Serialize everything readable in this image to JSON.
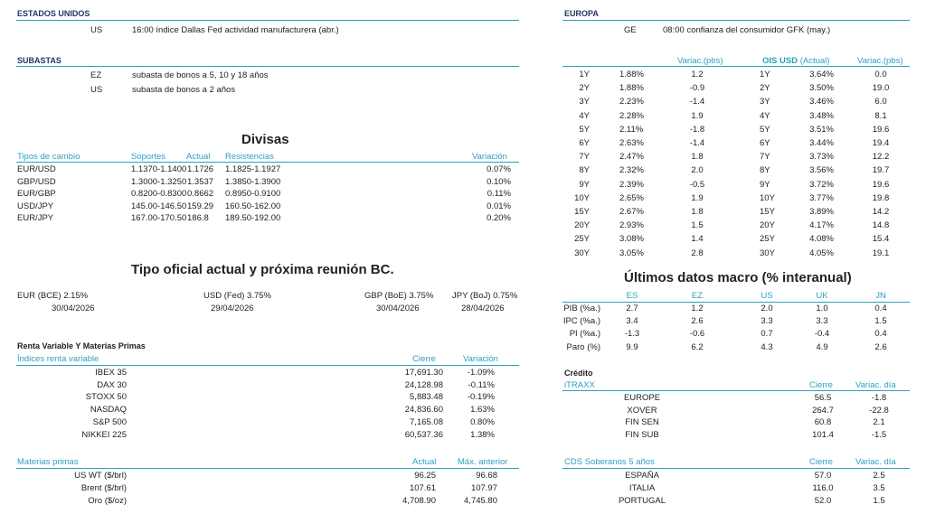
{
  "estados_unidos": {
    "title": "ESTADOS UNIDOS",
    "country": "US",
    "event": "16:00 índice Dallas Fed actividad manufacturera (abr.)"
  },
  "europa": {
    "title": "EUROPA",
    "country": "GE",
    "event": "08:00 confianza del consumidor GFK (may.)"
  },
  "subastas": {
    "title": "SUBASTAS",
    "items": [
      {
        "country": "EZ",
        "text": "subasta de bonos a 5, 10 y 18 años"
      },
      {
        "country": "US",
        "text": "subasta de bonos a 2 años"
      }
    ]
  },
  "divisas": {
    "title": "Divisas",
    "headers": {
      "pair": "Tipos de cambio",
      "supports": "Soportes",
      "current": "Actual",
      "resistances": "Resistencias",
      "change": "Variación"
    },
    "rows": [
      {
        "pair": "EUR/USD",
        "supports": "1.1370-1.1400",
        "current": "1.1726",
        "resistances": "1.1825-1.1927",
        "change": "0.07%"
      },
      {
        "pair": "GBP/USD",
        "supports": "1.3000-1.3250",
        "current": "1.3537",
        "resistances": "1.3850-1.3900",
        "change": "0.10%"
      },
      {
        "pair": "EUR/GBP",
        "supports": "0.8200-0.8300",
        "current": "0.8662",
        "resistances": "0.8950-0.9100",
        "change": "0.11%"
      },
      {
        "pair": "USD/JPY",
        "supports": "145.00-146.50",
        "current": "159.29",
        "resistances": "160.50-162.00",
        "change": "0.01%"
      },
      {
        "pair": "EUR/JPY",
        "supports": "167.00-170.50",
        "current": "186.8",
        "resistances": "189.50-192.00",
        "change": "0.20%"
      }
    ]
  },
  "tipos_oficiales": {
    "title": "Tipo oficial actual y próxima reunión BC.",
    "banks": [
      {
        "label": "EUR (BCE) 2.15%",
        "date": "30/04/2026"
      },
      {
        "label": "USD (Fed) 3.75%",
        "date": "29/04/2026"
      },
      {
        "label": "GBP (BoE) 3.75%",
        "date": "30/04/2026"
      },
      {
        "label": "JPY (BoJ) 0.75%",
        "date": "28/04/2026"
      }
    ]
  },
  "renta_variable": {
    "title": "Renta Variable Y Materias Primas",
    "headers": {
      "name": "Índices renta variable",
      "close": "Cierre",
      "change": "Variación"
    },
    "rows": [
      {
        "name": "IBEX 35",
        "close": "17,691.30",
        "change": "-1.09%"
      },
      {
        "name": "DAX 30",
        "close": "24,128.98",
        "change": "-0.11%"
      },
      {
        "name": "STOXX 50",
        "close": "5,883.48",
        "change": "-0.19%"
      },
      {
        "name": "NASDAQ",
        "close": "24,836.60",
        "change": "1.63%"
      },
      {
        "name": "S&P 500",
        "close": "7,165.08",
        "change": "0.80%"
      },
      {
        "name": "NIKKEI 225",
        "close": "60,537.36",
        "change": "1.38%"
      }
    ]
  },
  "materias_primas": {
    "headers": {
      "name": "Materias primas",
      "current": "Actual",
      "prev_max": "Máx. anterior"
    },
    "rows": [
      {
        "name": "US WT ($/brl)",
        "current": "96.25",
        "prev_max": "96.68"
      },
      {
        "name": "Brent ($/brl)",
        "current": "107.61",
        "prev_max": "107.97"
      },
      {
        "name": "Oro ($/oz)",
        "current": "4,708.90",
        "prev_max": "4,745.80"
      }
    ]
  },
  "curvas": {
    "headers": {
      "var1": "Variac.(pbs)",
      "ois": "OIS USD",
      "ois_sub": "(Actual)",
      "var2": "Variac.(pbs)"
    },
    "rows": [
      {
        "t": "1Y",
        "r": "1.88%",
        "v": "1.2",
        "t2": "1Y",
        "o": "3.64%",
        "v2": "0.0"
      },
      {
        "t": "2Y",
        "r": "1.88%",
        "v": "-0.9",
        "t2": "2Y",
        "o": "3.50%",
        "v2": "19.0"
      },
      {
        "t": "3Y",
        "r": "2.23%",
        "v": "-1.4",
        "t2": "3Y",
        "o": "3.46%",
        "v2": "6.0"
      },
      {
        "t": "4Y",
        "r": "2.28%",
        "v": "1.9",
        "t2": "4Y",
        "o": "3.48%",
        "v2": "8.1"
      },
      {
        "t": "5Y",
        "r": "2.11%",
        "v": "-1.8",
        "t2": "5Y",
        "o": "3.51%",
        "v2": "19.6"
      },
      {
        "t": "6Y",
        "r": "2.63%",
        "v": "-1.4",
        "t2": "6Y",
        "o": "3.44%",
        "v2": "19.4"
      },
      {
        "t": "7Y",
        "r": "2.47%",
        "v": "1.8",
        "t2": "7Y",
        "o": "3.73%",
        "v2": "12.2"
      },
      {
        "t": "8Y",
        "r": "2.32%",
        "v": "2.0",
        "t2": "8Y",
        "o": "3.56%",
        "v2": "19.7"
      },
      {
        "t": "9Y",
        "r": "2.39%",
        "v": "-0.5",
        "t2": "9Y",
        "o": "3.72%",
        "v2": "19.6"
      },
      {
        "t": "10Y",
        "r": "2.65%",
        "v": "1.9",
        "t2": "10Y",
        "o": "3.77%",
        "v2": "19.8"
      },
      {
        "t": "15Y",
        "r": "2.67%",
        "v": "1.8",
        "t2": "15Y",
        "o": "3.89%",
        "v2": "14.2"
      },
      {
        "t": "20Y",
        "r": "2.93%",
        "v": "1.5",
        "t2": "20Y",
        "o": "4.17%",
        "v2": "14.8"
      },
      {
        "t": "25Y",
        "r": "3.08%",
        "v": "1.4",
        "t2": "25Y",
        "o": "4.08%",
        "v2": "15.4"
      },
      {
        "t": "30Y",
        "r": "3.05%",
        "v": "2.8",
        "t2": "30Y",
        "o": "4.05%",
        "v2": "19.1"
      }
    ]
  },
  "macro": {
    "title": "Últimos datos macro (% interanual)",
    "headers": [
      "ES",
      "EZ",
      "US",
      "UK",
      "JN"
    ],
    "rows": [
      {
        "label": "PIB (%a.)",
        "values": [
          "2.7",
          "1.2",
          "2.0",
          "1.0",
          "0.4"
        ]
      },
      {
        "label": "IPC (%a.)",
        "values": [
          "3.4",
          "2.6",
          "3.3",
          "3.3",
          "1.5"
        ]
      },
      {
        "label": "PI (%a.)",
        "values": [
          "-1.3",
          "-0.6",
          "0.7",
          "-0.4",
          "0.4"
        ]
      },
      {
        "label": "Paro (%)",
        "values": [
          "9.9",
          "6.2",
          "4.3",
          "4.9",
          "2.6"
        ]
      }
    ]
  },
  "credito": {
    "title": "Crédito",
    "itraxx": {
      "headers": {
        "name": "iTRAXX",
        "close": "Cierre",
        "change": "Variac. día"
      },
      "rows": [
        {
          "name": "EUROPE",
          "close": "56.5",
          "change": "-1.8"
        },
        {
          "name": "XOVER",
          "close": "264.7",
          "change": "-22.8"
        },
        {
          "name": "FIN SEN",
          "close": "60.8",
          "change": "2.1"
        },
        {
          "name": "FIN SUB",
          "close": "101.4",
          "change": "-1.5"
        }
      ]
    },
    "cds": {
      "headers": {
        "name": "CDS Soberanos 5 años",
        "close": "Cierre",
        "change": "Variac. día"
      },
      "rows": [
        {
          "name": "ESPAÑA",
          "close": "57.0",
          "change": "2.5"
        },
        {
          "name": "ITALIA",
          "close": "116.0",
          "change": "3.5"
        },
        {
          "name": "PORTUGAL",
          "close": "52.0",
          "change": "1.5"
        }
      ]
    }
  }
}
